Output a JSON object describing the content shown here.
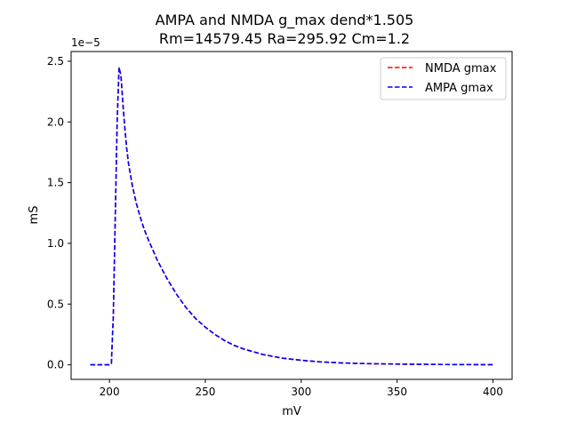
{
  "chart_data": {
    "type": "line",
    "title_lines": [
      "AMPA and NMDA g_max dend*1.505",
      "Rm=14579.45 Ra=295.92 Cm=1.2"
    ],
    "xlabel": "mV",
    "ylabel": "mS",
    "y_offset_label": "1e−5",
    "xlim": [
      180,
      410
    ],
    "ylim": [
      -0.12,
      2.58
    ],
    "x_ticks": [
      200,
      250,
      300,
      350,
      400
    ],
    "y_ticks": [
      0.0,
      0.5,
      1.0,
      1.5,
      2.0,
      2.5
    ],
    "x_tick_labels": [
      "200",
      "250",
      "300",
      "350",
      "400"
    ],
    "y_tick_labels": [
      "0.0",
      "0.5",
      "1.0",
      "1.5",
      "2.0",
      "2.5"
    ],
    "grid": false,
    "legend_position": "top-right",
    "x": [
      190,
      195,
      200,
      201,
      202,
      203,
      204,
      205,
      206,
      207,
      208,
      209,
      210,
      212,
      214,
      216,
      218,
      220,
      225,
      230,
      235,
      240,
      245,
      250,
      255,
      260,
      265,
      270,
      280,
      290,
      300,
      310,
      320,
      330,
      340,
      350,
      360,
      370,
      380,
      390,
      400
    ],
    "series": [
      {
        "name": "NMDA gmax",
        "color": "#ff0000",
        "values": [
          0,
          0,
          0,
          0.01,
          0.4,
          1.2,
          2.0,
          2.45,
          2.38,
          2.15,
          1.95,
          1.78,
          1.65,
          1.47,
          1.33,
          1.22,
          1.12,
          1.04,
          0.86,
          0.71,
          0.58,
          0.47,
          0.38,
          0.31,
          0.25,
          0.2,
          0.16,
          0.13,
          0.085,
          0.055,
          0.037,
          0.024,
          0.016,
          0.011,
          0.008,
          0.006,
          0.004,
          0.003,
          0.002,
          0.0015,
          0.001
        ]
      },
      {
        "name": "AMPA gmax",
        "color": "#0000ff",
        "values": [
          0,
          0,
          0,
          0.01,
          0.4,
          1.2,
          2.0,
          2.45,
          2.38,
          2.15,
          1.95,
          1.78,
          1.65,
          1.47,
          1.33,
          1.22,
          1.12,
          1.04,
          0.86,
          0.71,
          0.58,
          0.47,
          0.38,
          0.31,
          0.25,
          0.2,
          0.16,
          0.13,
          0.085,
          0.055,
          0.037,
          0.024,
          0.016,
          0.011,
          0.008,
          0.006,
          0.004,
          0.003,
          0.002,
          0.0015,
          0.001
        ]
      }
    ]
  }
}
